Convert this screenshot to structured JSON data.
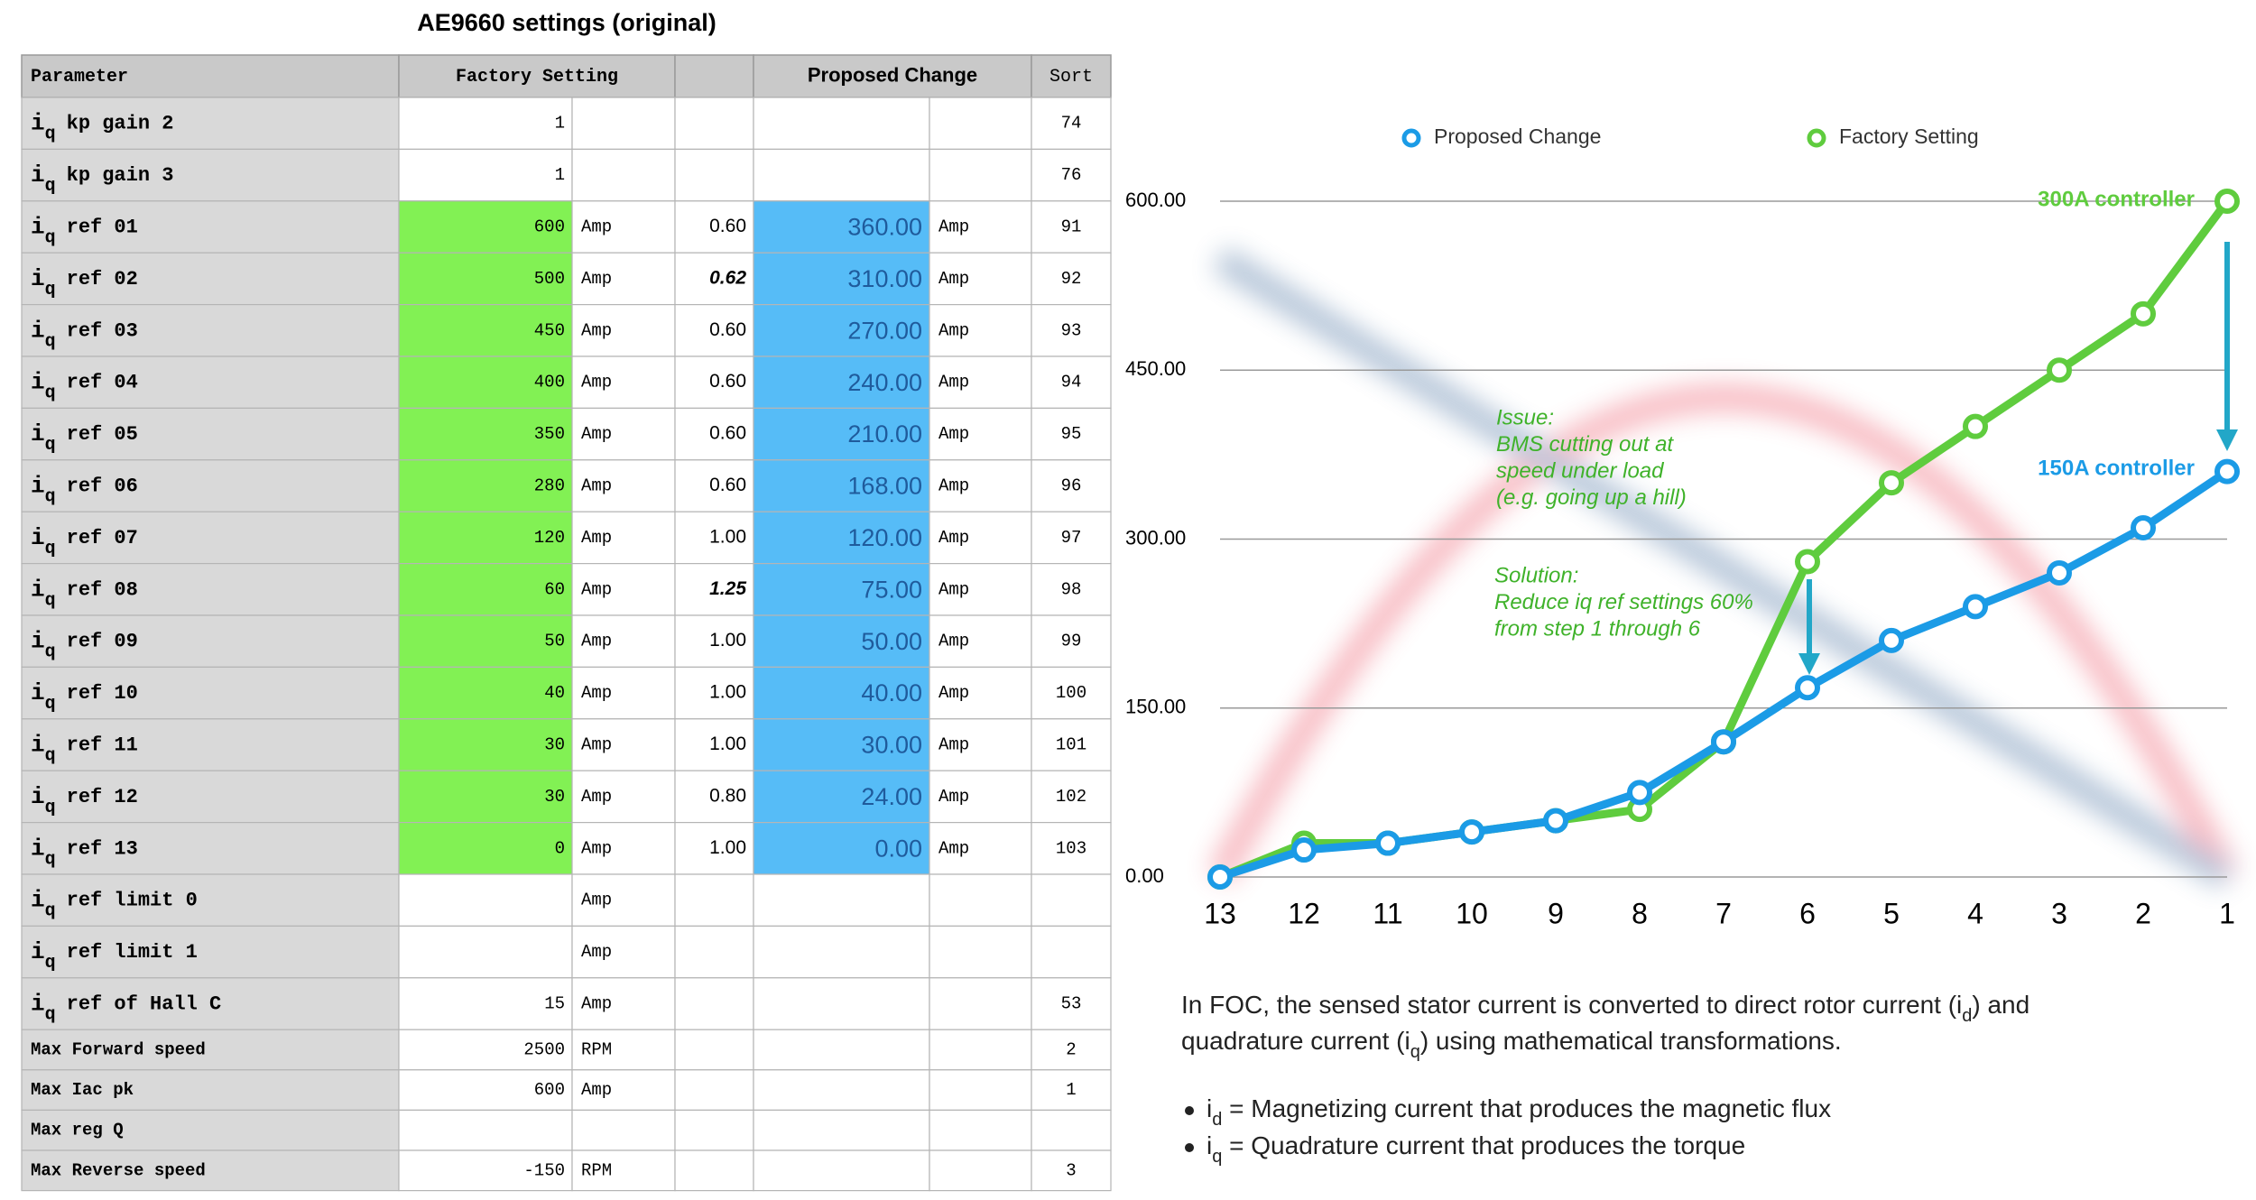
{
  "header": {
    "title": "AE9660 settings (original)"
  },
  "table": {
    "headers": [
      "Parameter",
      "Factory Setting",
      "Proposed Change",
      "Sort"
    ],
    "rows": [
      {
        "param": {
          "sym": "i",
          "sub": "q",
          "name": "kp gain 2"
        },
        "factory": "1",
        "sort": "74"
      },
      {
        "param": {
          "sym": "i",
          "sub": "q",
          "name": "kp gain 3"
        },
        "factory": "1",
        "sort": "76"
      },
      {
        "param": {
          "sym": "i",
          "sub": "q",
          "name": "ref 01"
        },
        "factory": "600",
        "unit": "Amp",
        "ratio": "0.60",
        "proposed": "360.00",
        "unit2": "Amp",
        "sort": "91"
      },
      {
        "param": {
          "sym": "i",
          "sub": "q",
          "name": "ref 02"
        },
        "factory": "500",
        "unit": "Amp",
        "ratio": "0.62",
        "emph": true,
        "proposed": "310.00",
        "unit2": "Amp",
        "sort": "92"
      },
      {
        "param": {
          "sym": "i",
          "sub": "q",
          "name": "ref 03"
        },
        "factory": "450",
        "unit": "Amp",
        "ratio": "0.60",
        "proposed": "270.00",
        "unit2": "Amp",
        "sort": "93"
      },
      {
        "param": {
          "sym": "i",
          "sub": "q",
          "name": "ref 04"
        },
        "factory": "400",
        "unit": "Amp",
        "ratio": "0.60",
        "proposed": "240.00",
        "unit2": "Amp",
        "sort": "94"
      },
      {
        "param": {
          "sym": "i",
          "sub": "q",
          "name": "ref 05"
        },
        "factory": "350",
        "unit": "Amp",
        "ratio": "0.60",
        "proposed": "210.00",
        "unit2": "Amp",
        "sort": "95"
      },
      {
        "param": {
          "sym": "i",
          "sub": "q",
          "name": "ref 06"
        },
        "factory": "280",
        "unit": "Amp",
        "ratio": "0.60",
        "proposed": "168.00",
        "unit2": "Amp",
        "sort": "96"
      },
      {
        "param": {
          "sym": "i",
          "sub": "q",
          "name": "ref 07"
        },
        "factory": "120",
        "unit": "Amp",
        "ratio": "1.00",
        "proposed": "120.00",
        "unit2": "Amp",
        "sort": "97"
      },
      {
        "param": {
          "sym": "i",
          "sub": "q",
          "name": "ref 08"
        },
        "factory": "60",
        "unit": "Amp",
        "ratio": "1.25",
        "emph": true,
        "proposed": "75.00",
        "unit2": "Amp",
        "sort": "98"
      },
      {
        "param": {
          "sym": "i",
          "sub": "q",
          "name": "ref 09"
        },
        "factory": "50",
        "unit": "Amp",
        "ratio": "1.00",
        "proposed": "50.00",
        "unit2": "Amp",
        "sort": "99"
      },
      {
        "param": {
          "sym": "i",
          "sub": "q",
          "name": "ref 10"
        },
        "factory": "40",
        "unit": "Amp",
        "ratio": "1.00",
        "proposed": "40.00",
        "unit2": "Amp",
        "sort": "100"
      },
      {
        "param": {
          "sym": "i",
          "sub": "q",
          "name": "ref 11"
        },
        "factory": "30",
        "unit": "Amp",
        "ratio": "1.00",
        "proposed": "30.00",
        "unit2": "Amp",
        "sort": "101"
      },
      {
        "param": {
          "sym": "i",
          "sub": "q",
          "name": "ref 12"
        },
        "factory": "30",
        "unit": "Amp",
        "ratio": "0.80",
        "proposed": "24.00",
        "unit2": "Amp",
        "sort": "102"
      },
      {
        "param": {
          "sym": "i",
          "sub": "q",
          "name": "ref 13"
        },
        "factory": "0",
        "unit": "Amp",
        "ratio": "1.00",
        "proposed": "0.00",
        "unit2": "Amp",
        "sort": "103"
      },
      {
        "param": {
          "sym": "i",
          "sub": "q",
          "name": "ref limit 0"
        },
        "unit": "Amp"
      },
      {
        "param": {
          "sym": "i",
          "sub": "q",
          "name": "ref limit 1"
        },
        "unit": "Amp"
      },
      {
        "param": {
          "sym": "i",
          "sub": "q",
          "name": "ref of Hall C"
        },
        "factory": "15",
        "unit": "Amp",
        "sort": "53"
      },
      {
        "param": {
          "name": "Max Forward speed"
        },
        "factory": "2500",
        "unit": "RPM",
        "sort": "2"
      },
      {
        "param": {
          "name": "Max Iac pk"
        },
        "factory": "600",
        "unit": "Amp",
        "sort": "1"
      },
      {
        "param": {
          "name": "Max reg Q"
        }
      },
      {
        "param": {
          "name": "Max Reverse speed"
        },
        "factory": "-150",
        "unit": "RPM",
        "sort": "3"
      }
    ]
  },
  "chart_data": {
    "type": "line",
    "categories": [
      "13",
      "12",
      "11",
      "10",
      "9",
      "8",
      "7",
      "6",
      "5",
      "4",
      "3",
      "2",
      "1"
    ],
    "series": [
      {
        "name": "Proposed Change",
        "color": "#1b9be6",
        "values": [
          0,
          24,
          30,
          40,
          50,
          75,
          120,
          168,
          210,
          240,
          270,
          310,
          360
        ]
      },
      {
        "name": "Factory Setting",
        "color": "#5fcc3e",
        "values": [
          0,
          30,
          30,
          40,
          50,
          60,
          120,
          280,
          350,
          400,
          450,
          500,
          600
        ]
      }
    ],
    "ylim": [
      0,
      600
    ],
    "yticks": [
      {
        "value": 0,
        "label": "0.00"
      },
      {
        "value": 150,
        "label": "150.00"
      },
      {
        "value": 300,
        "label": "300.00"
      },
      {
        "value": 450,
        "label": "450.00"
      },
      {
        "value": 600,
        "label": "600.00"
      }
    ],
    "grid": true,
    "legend": "top",
    "annotations": {
      "green_label": "300A controller",
      "blue_label": "150A controller",
      "issue": [
        "Issue:",
        "BMS cutting out at",
        "speed under load",
        "(e.g. going up a hill)"
      ],
      "solution": [
        "Solution:",
        "Reduce iq ref settings 60%",
        "from step 1 through 6"
      ]
    }
  },
  "notes": {
    "paragraph": [
      [
        "In FOC, the sensed stator current is converted to direct rotor current (i",
        "d",
        ") and"
      ],
      [
        "quadrature current (i",
        "q",
        ") using mathematical transformations."
      ]
    ],
    "bullets": [
      [
        "i",
        "d",
        " = Magnetizing current that produces the magnetic flux"
      ],
      [
        "i",
        "q",
        " = Quadrature current that produces the torque"
      ]
    ]
  }
}
